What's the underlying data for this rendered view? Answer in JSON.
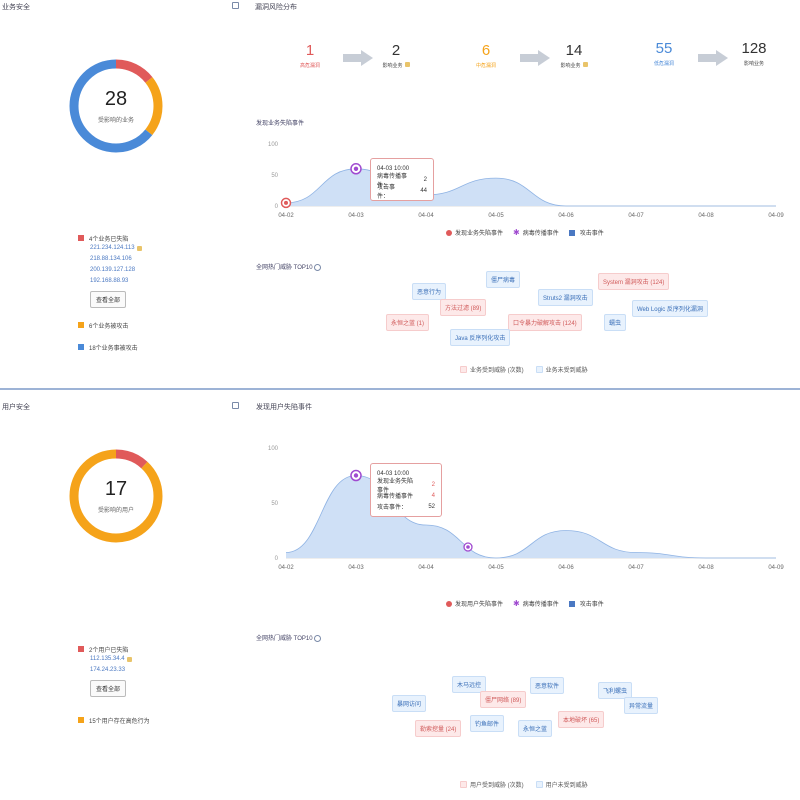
{
  "top": {
    "title": "业务安全",
    "donut": {
      "value": "28",
      "label": "受影响的业务",
      "colors": {
        "fallen": "#e05a5a",
        "attacked": "#f5a31a",
        "targeted": "#4a8ad8"
      },
      "fractions": {
        "fallen": 0.143,
        "attacked": 0.214,
        "targeted": 0.643
      }
    },
    "legend": {
      "fallen_label": "4个业务已失陷",
      "ips": [
        "221.234.124.113",
        "218.88.134.106",
        "200.139.127.128",
        "192.168.88.93"
      ],
      "view_all": "查看全部",
      "attacked_label": "6个业务被攻击",
      "targeted_label": "18个业务事被攻击"
    },
    "flow_title": "漏洞风险分布",
    "flow": [
      {
        "num": "1",
        "label": "高危漏洞",
        "color": "#e05a5a"
      },
      {
        "num": "2",
        "label": "影响业务",
        "color": "#222"
      },
      {
        "num": "6",
        "label": "中危漏洞",
        "color": "#f5a31a"
      },
      {
        "num": "14",
        "label": "影响业务",
        "color": "#222"
      },
      {
        "num": "55",
        "label": "低危漏洞",
        "color": "#4a8ad8"
      },
      {
        "num": "128",
        "label": "影响业务",
        "color": "#222"
      }
    ],
    "chart_title": "发现业务失陷事件",
    "chart_data": {
      "type": "area",
      "x": [
        "04-02",
        "04-03",
        "04-04",
        "04-05",
        "04-06",
        "04-07",
        "04-08",
        "04-09"
      ],
      "ylim": [
        0,
        100
      ],
      "yticks": [
        "100",
        "50",
        "0"
      ],
      "values": [
        5,
        60,
        18,
        45,
        0,
        0,
        0,
        0
      ]
    },
    "tooltip": {
      "time": "04-03 10:00",
      "rows": [
        {
          "label": "病毒传播事件：",
          "value": "2"
        },
        {
          "label": "攻击事件：",
          "value": "44"
        }
      ]
    },
    "chart_legend": [
      "发现业务失陷事件",
      "病毒传播事件",
      "攻击事件"
    ],
    "threat_title": "全网热门威胁 TOP10",
    "tags": [
      {
        "text": "僵尸病毒",
        "kind": "blue"
      },
      {
        "text": "恶意行为",
        "kind": "blue"
      },
      {
        "text": "方法过滤 (89)",
        "kind": "red"
      },
      {
        "text": "Struts2 漏洞攻击",
        "kind": "blue"
      },
      {
        "text": "System 漏洞攻击 (124)",
        "kind": "red"
      },
      {
        "text": "Web Logic 反序列化漏洞",
        "kind": "blue"
      },
      {
        "text": "永恒之蓝 (1)",
        "kind": "red"
      },
      {
        "text": "口令暴力破解攻击 (124)",
        "kind": "red"
      },
      {
        "text": "蠕虫",
        "kind": "blue"
      },
      {
        "text": "Java 反序列化攻击",
        "kind": "blue"
      }
    ],
    "tag_legend": [
      "业务受到威胁 (次数)",
      "业务未受到威胁"
    ]
  },
  "bottom": {
    "title": "用户安全",
    "donut": {
      "value": "17",
      "label": "受影响的用户",
      "colors": {
        "fallen": "#e05a5a",
        "risky": "#f5a31a"
      },
      "fractions": {
        "fallen": 0.118,
        "risky": 0.882
      }
    },
    "legend": {
      "fallen_label": "2个用户已失陷",
      "ips": [
        "112.135.34.4",
        "174.24.23.33"
      ],
      "view_all": "查看全部",
      "risky_label": "15个用户存在高危行为"
    },
    "chart_title": "发现用户失陷事件",
    "chart_data": {
      "type": "area",
      "x": [
        "04-02",
        "04-03",
        "04-04",
        "04-05",
        "04-06",
        "04-07",
        "04-08",
        "04-09"
      ],
      "ylim": [
        0,
        100
      ],
      "yticks": [
        "100",
        "50",
        "0"
      ],
      "values": [
        5,
        75,
        30,
        0,
        25,
        5,
        0,
        0
      ]
    },
    "tooltip": {
      "time": "04-03 10:00",
      "rows": [
        {
          "label": "发现业务失陷事件",
          "value": "2"
        },
        {
          "label": "病毒传播事件",
          "value": "4"
        },
        {
          "label": "攻击事件：",
          "value": "52"
        }
      ]
    },
    "chart_legend": [
      "发现用户失陷事件",
      "病毒传播事件",
      "攻击事件"
    ],
    "threat_title": "全网热门威胁 TOP10",
    "tags": [
      {
        "text": "木马远控",
        "kind": "blue"
      },
      {
        "text": "恶意软件",
        "kind": "blue"
      },
      {
        "text": "飞利螺虫",
        "kind": "blue"
      },
      {
        "text": "僵尸网络 (89)",
        "kind": "red"
      },
      {
        "text": "暴网访问",
        "kind": "blue"
      },
      {
        "text": "异常流量",
        "kind": "blue"
      },
      {
        "text": "勒索挖量 (24)",
        "kind": "red"
      },
      {
        "text": "钓鱼邮件",
        "kind": "blue"
      },
      {
        "text": "永恒之蓝",
        "kind": "blue"
      },
      {
        "text": "本地破坏 (65)",
        "kind": "red"
      }
    ],
    "tag_legend": [
      "用户受到威胁 (次数)",
      "用户未受到威胁"
    ]
  }
}
